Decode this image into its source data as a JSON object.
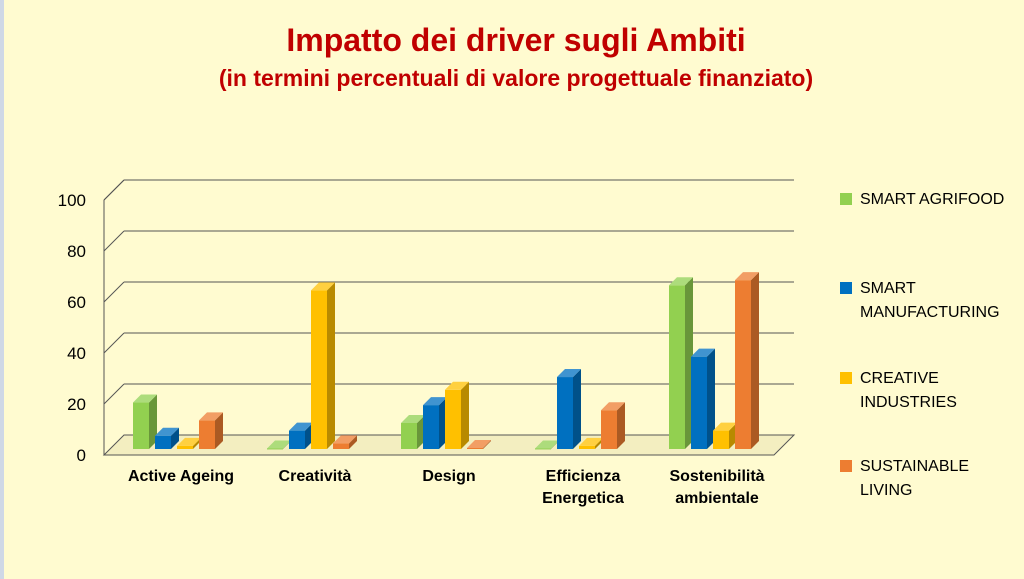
{
  "chart_data": {
    "type": "bar",
    "title": "Impatto dei driver sugli Ambiti",
    "subtitle": "(in termini percentuali di valore progettuale finanziato)",
    "categories": [
      "Active Ageing",
      "Creatività",
      "Design",
      "Efficienza Energetica",
      "Sostenibilità ambientale"
    ],
    "series": [
      {
        "name": "SMART AGRIFOOD",
        "values": [
          19,
          1,
          11,
          1,
          65
        ]
      },
      {
        "name": "SMART MANUFACTURING",
        "values": [
          6,
          8,
          18,
          29,
          37
        ]
      },
      {
        "name": "CREATIVE INDUSTRIES",
        "values": [
          2,
          63,
          24,
          2,
          8
        ]
      },
      {
        "name": "SUSTAINABLE LIVING",
        "values": [
          12,
          3,
          0,
          16,
          67
        ]
      }
    ],
    "ylim": [
      0,
      100
    ],
    "yticks": [
      0,
      20,
      40,
      60,
      80,
      100
    ],
    "grid": true,
    "legend": "right",
    "colors": [
      "#92d050",
      "#0070c0",
      "#ffc000",
      "#ed7d31"
    ]
  }
}
